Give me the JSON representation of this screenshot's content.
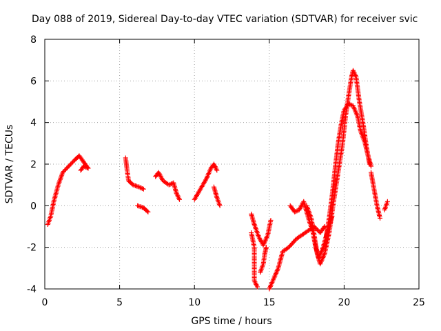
{
  "chart_data": {
    "type": "scatter",
    "title": "Day 088 of 2019, Sidereal Day-to-day VTEC variation (SDTVAR) for receiver svic",
    "xlabel": "GPS time / hours",
    "ylabel": "SDTVAR / TECUs",
    "xlim": [
      0,
      25
    ],
    "ylim": [
      -4,
      8
    ],
    "xticks": [
      0,
      5,
      10,
      15,
      20,
      25
    ],
    "yticks": [
      -4,
      -2,
      0,
      2,
      4,
      6,
      8
    ],
    "grid": true,
    "marker": "+",
    "color": "#ff0000",
    "series": [
      {
        "name": "arc-1",
        "points": [
          [
            0.2,
            -0.9
          ],
          [
            0.4,
            -0.5
          ],
          [
            0.6,
            0.2
          ],
          [
            0.9,
            1.0
          ],
          [
            1.2,
            1.6
          ],
          [
            1.6,
            1.9
          ],
          [
            2.0,
            2.2
          ],
          [
            2.3,
            2.4
          ],
          [
            2.6,
            2.1
          ],
          [
            2.9,
            1.8
          ],
          [
            2.6,
            1.9
          ],
          [
            2.4,
            1.7
          ]
        ]
      },
      {
        "name": "arc-2",
        "points": [
          [
            5.4,
            2.3
          ],
          [
            5.5,
            1.7
          ],
          [
            5.6,
            1.2
          ],
          [
            5.9,
            1.0
          ],
          [
            6.3,
            0.9
          ],
          [
            6.6,
            0.8
          ]
        ]
      },
      {
        "name": "arc-3",
        "points": [
          [
            6.2,
            0.0
          ],
          [
            6.6,
            -0.1
          ],
          [
            6.9,
            -0.3
          ]
        ]
      },
      {
        "name": "arc-4",
        "points": [
          [
            7.4,
            1.4
          ],
          [
            7.6,
            1.6
          ],
          [
            7.9,
            1.2
          ],
          [
            8.3,
            1.0
          ],
          [
            8.6,
            1.1
          ],
          [
            8.8,
            0.6
          ],
          [
            9.0,
            0.3
          ]
        ]
      },
      {
        "name": "arc-5",
        "points": [
          [
            10.0,
            0.3
          ],
          [
            10.4,
            0.8
          ],
          [
            10.8,
            1.3
          ],
          [
            11.1,
            1.8
          ],
          [
            11.3,
            2.0
          ],
          [
            11.5,
            1.7
          ]
        ]
      },
      {
        "name": "arc-6",
        "points": [
          [
            11.3,
            0.9
          ],
          [
            11.5,
            0.4
          ],
          [
            11.7,
            0.0
          ]
        ]
      },
      {
        "name": "arc-7",
        "points": [
          [
            13.8,
            -0.4
          ],
          [
            14.0,
            -0.9
          ],
          [
            14.3,
            -1.5
          ],
          [
            14.6,
            -1.9
          ],
          [
            14.9,
            -1.4
          ],
          [
            15.1,
            -0.7
          ]
        ]
      },
      {
        "name": "arc-8",
        "points": [
          [
            13.8,
            -1.3
          ],
          [
            14.0,
            -2.0
          ],
          [
            14.0,
            -3.6
          ],
          [
            14.2,
            -3.9
          ]
        ]
      },
      {
        "name": "arc-9",
        "points": [
          [
            14.4,
            -3.2
          ],
          [
            14.6,
            -2.8
          ],
          [
            14.7,
            -2.3
          ],
          [
            14.8,
            -2.0
          ]
        ]
      },
      {
        "name": "arc-10",
        "points": [
          [
            15.0,
            -4.0
          ],
          [
            15.3,
            -3.5
          ],
          [
            15.6,
            -3.0
          ],
          [
            15.9,
            -2.2
          ],
          [
            16.3,
            -2.0
          ],
          [
            16.8,
            -1.6
          ],
          [
            17.2,
            -1.4
          ],
          [
            17.6,
            -1.2
          ],
          [
            18.0,
            -1.0
          ],
          [
            18.4,
            -1.3
          ],
          [
            18.7,
            -1.0
          ]
        ]
      },
      {
        "name": "arc-11",
        "points": [
          [
            16.4,
            0.0
          ],
          [
            16.7,
            -0.3
          ],
          [
            17.0,
            -0.2
          ],
          [
            17.3,
            0.2
          ],
          [
            17.5,
            -0.3
          ],
          [
            17.7,
            -0.8
          ],
          [
            17.9,
            -1.2
          ],
          [
            18.1,
            -2.0
          ],
          [
            18.3,
            -2.5
          ],
          [
            18.6,
            -2.0
          ],
          [
            18.9,
            -1.2
          ],
          [
            19.2,
            -0.5
          ]
        ]
      },
      {
        "name": "arc-12",
        "points": [
          [
            17.5,
            0.0
          ],
          [
            17.8,
            -0.6
          ],
          [
            18.0,
            -1.4
          ],
          [
            18.2,
            -2.3
          ],
          [
            18.4,
            -2.8
          ],
          [
            18.7,
            -2.3
          ],
          [
            19.0,
            -1.3
          ],
          [
            19.3,
            0.2
          ],
          [
            19.6,
            1.6
          ],
          [
            19.9,
            3.0
          ],
          [
            20.1,
            4.3
          ],
          [
            20.3,
            5.3
          ],
          [
            20.5,
            6.2
          ],
          [
            20.6,
            6.5
          ],
          [
            20.8,
            6.2
          ],
          [
            21.0,
            5.1
          ],
          [
            21.3,
            3.8
          ],
          [
            21.5,
            2.8
          ],
          [
            21.7,
            2.0
          ]
        ]
      },
      {
        "name": "arc-13",
        "points": [
          [
            18.8,
            -1.5
          ],
          [
            19.0,
            -0.6
          ],
          [
            19.2,
            0.5
          ],
          [
            19.4,
            1.8
          ],
          [
            19.6,
            3.0
          ],
          [
            19.8,
            3.9
          ],
          [
            20.0,
            4.6
          ],
          [
            20.3,
            4.9
          ],
          [
            20.6,
            4.8
          ],
          [
            20.9,
            4.3
          ],
          [
            21.1,
            3.6
          ],
          [
            21.4,
            3.0
          ],
          [
            21.6,
            2.4
          ],
          [
            21.8,
            1.9
          ]
        ]
      },
      {
        "name": "arc-14",
        "points": [
          [
            21.8,
            1.6
          ],
          [
            22.0,
            0.8
          ],
          [
            22.2,
            0.0
          ],
          [
            22.4,
            -0.6
          ]
        ]
      },
      {
        "name": "arc-15",
        "points": [
          [
            22.7,
            -0.2
          ],
          [
            22.9,
            0.2
          ]
        ]
      }
    ]
  }
}
